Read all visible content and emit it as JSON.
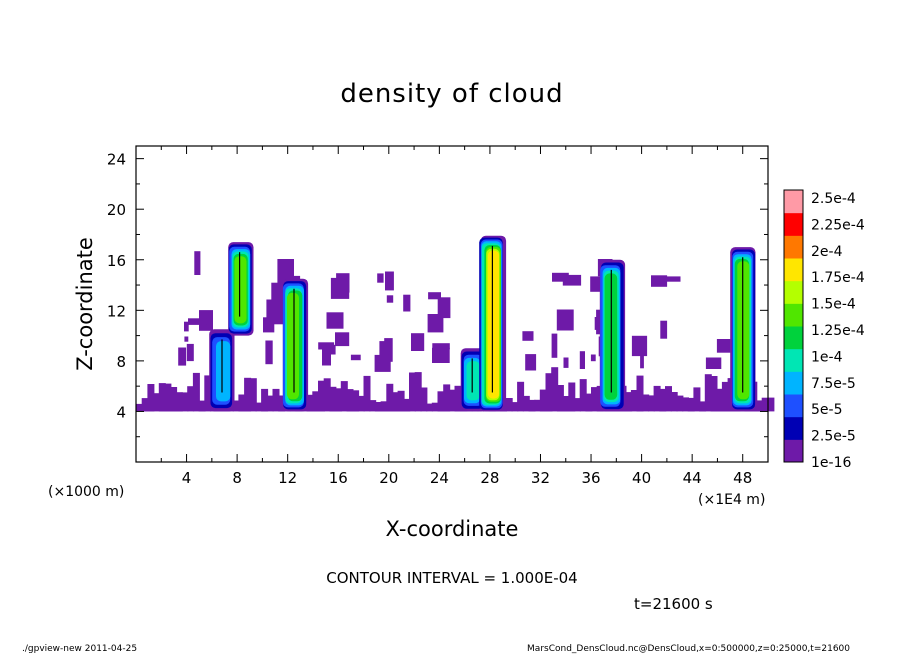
{
  "chart_data": {
    "type": "heatmap",
    "title": "density of cloud",
    "xlabel": "X-coordinate",
    "ylabel": "Z-coordinate",
    "x_unit": "(×1000 m)",
    "x_multiplier": "(×1E4 m)",
    "xlim": [
      0,
      50
    ],
    "ylim": [
      0,
      25
    ],
    "x_ticks": [
      "4",
      "8",
      "12",
      "16",
      "20",
      "24",
      "28",
      "32",
      "36",
      "40",
      "44",
      "48"
    ],
    "y_ticks": [
      "4",
      "8",
      "12",
      "16",
      "20",
      "24"
    ],
    "colorbar_labels": [
      "1e-16",
      "2.5e-5",
      "5e-5",
      "7.5e-5",
      "1e-4",
      "1.25e-4",
      "1.5e-4",
      "1.75e-4",
      "2e-4",
      "2.25e-4",
      "2.5e-4"
    ],
    "colorbar_colors": [
      "#6e1aa8",
      "#0000b4",
      "#1e50ff",
      "#00b4ff",
      "#00e6b4",
      "#00d23c",
      "#50e600",
      "#b4ff00",
      "#ffe600",
      "#ff7800",
      "#ff0000",
      "#ff9aa6"
    ],
    "cloud_base_range": [
      4,
      7
    ],
    "columns": [
      {
        "x_center": 6.8,
        "z_bottom": 4,
        "z_top": 10.5,
        "peak": 9e-05
      },
      {
        "x_center": 8.2,
        "z_bottom": 10,
        "z_top": 17.4,
        "peak": 0.00016
      },
      {
        "x_center": 12.5,
        "z_bottom": 4,
        "z_top": 14.5,
        "peak": 0.00015
      },
      {
        "x_center": 26.6,
        "z_bottom": 4,
        "z_top": 9.0,
        "peak": 0.00012
      },
      {
        "x_center": 28.2,
        "z_bottom": 4,
        "z_top": 17.9,
        "peak": 0.0002
      },
      {
        "x_center": 37.6,
        "z_bottom": 4,
        "z_top": 16.0,
        "peak": 0.00014
      },
      {
        "x_center": 48.0,
        "z_bottom": 4,
        "z_top": 17.0,
        "peak": 0.00015
      }
    ],
    "contour_interval": "CONTOUR INTERVAL = 1.000E-04",
    "time": "t=21600 s"
  },
  "footer": {
    "left": "./gpview-new  2011-04-25",
    "right": "MarsCond_DensCloud.nc@DensCloud,x=0:500000,z=0:25000,t=21600"
  }
}
